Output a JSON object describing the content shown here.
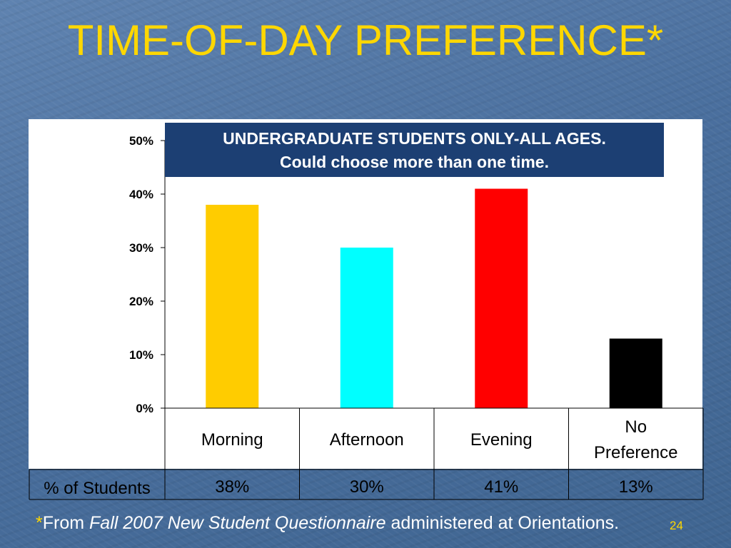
{
  "slide": {
    "title": "TIME-OF-DAY PREFERENCE*",
    "banner_line1": "UNDERGRADUATE STUDENTS ONLY-ALL AGES.",
    "banner_line2": "Could choose more than one time.",
    "footnote_star": "*",
    "footnote_from": "From ",
    "footnote_source": "Fall 2007 New Student Questionnaire",
    "footnote_rest": " administered at Orientations.",
    "page_number": "24",
    "colors": {
      "background": "#4a6f9e",
      "title": "#ffd700",
      "banner": "#1c3f73"
    }
  },
  "chart_data": {
    "type": "bar",
    "title": "",
    "xlabel": "",
    "ylabel": "",
    "ylim": [
      0,
      50
    ],
    "yticks": [
      "0%",
      "10%",
      "20%",
      "30%",
      "40%",
      "50%"
    ],
    "ytick_values": [
      0,
      10,
      20,
      30,
      40,
      50
    ],
    "grid": false,
    "categories": [
      {
        "lines": [
          "Morning"
        ]
      },
      {
        "lines": [
          "Afternoon"
        ]
      },
      {
        "lines": [
          "Evening"
        ]
      },
      {
        "lines": [
          "No",
          "Preference"
        ]
      }
    ],
    "series": [
      {
        "row_label": "% of Students",
        "values": [
          38,
          30,
          41,
          13
        ],
        "value_labels": [
          "38%",
          "30%",
          "41%",
          "13%"
        ],
        "colors": [
          "#ffcc00",
          "#00ffff",
          "#ff0000",
          "#000000"
        ]
      }
    ]
  }
}
